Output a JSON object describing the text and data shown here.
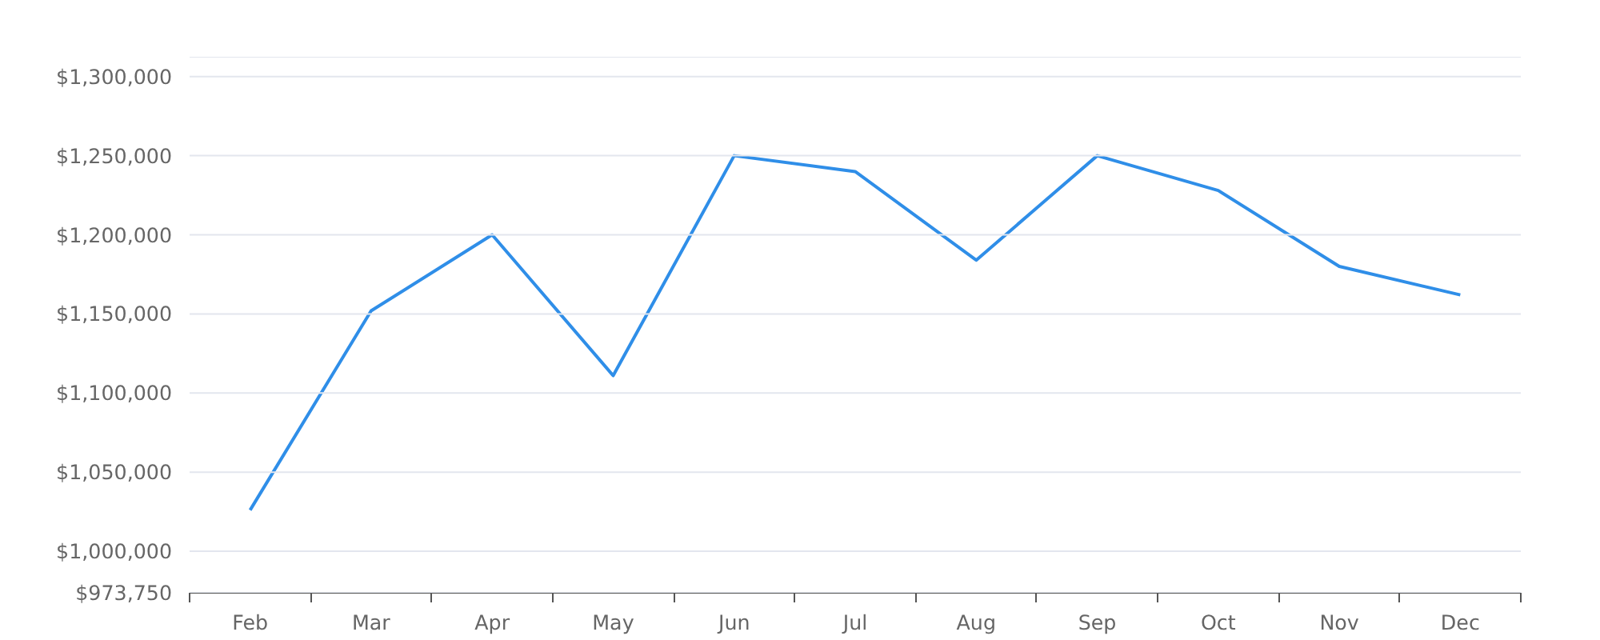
{
  "chart_data": {
    "type": "line",
    "categories": [
      "Feb",
      "Mar",
      "Apr",
      "May",
      "Jun",
      "Jul",
      "Aug",
      "Sep",
      "Oct",
      "Nov",
      "Dec"
    ],
    "series": [
      {
        "color": "#2f8ee8",
        "values": [
          1026000,
          1152000,
          1200000,
          1111000,
          1250000,
          1240000,
          1184000,
          1250000,
          1228000,
          1180000,
          1162000
        ]
      }
    ],
    "ylim": [
      973750,
      1312500
    ],
    "yticks": [
      {
        "value": 973750,
        "label": "$973,750"
      },
      {
        "value": 1000000,
        "label": "$1,000,000"
      },
      {
        "value": 1050000,
        "label": "$1,050,000"
      },
      {
        "value": 1100000,
        "label": "$1,100,000"
      },
      {
        "value": 1150000,
        "label": "$1,150,000"
      },
      {
        "value": 1200000,
        "label": "$1,200,000"
      },
      {
        "value": 1250000,
        "label": "$1,250,000"
      },
      {
        "value": 1300000,
        "label": "$1,300,000"
      },
      {
        "value": 1312500,
        "label": null
      }
    ],
    "grid": "y",
    "marker": "none",
    "line_style": "solid"
  }
}
